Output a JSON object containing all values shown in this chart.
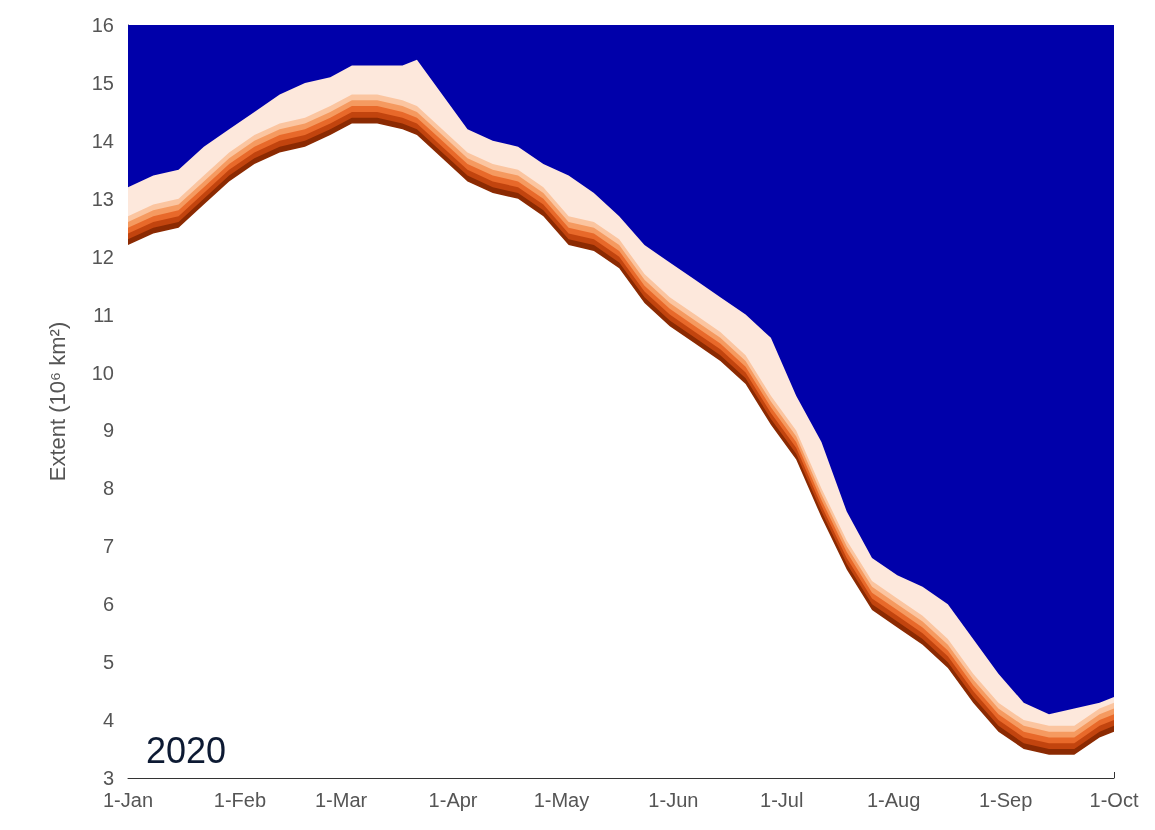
{
  "chart_data": {
    "type": "area",
    "ylabel": "Extent (10⁶ km²)",
    "annotations": [
      "2020"
    ],
    "x": [
      "--01-01",
      "--01-08",
      "--01-15",
      "--01-22",
      "--01-29",
      "--02-05",
      "--02-12",
      "--02-19",
      "--02-26",
      "--03-04",
      "--03-11",
      "--03-18",
      "--03-22",
      "--03-29",
      "--04-05",
      "--04-12",
      "--04-19",
      "--04-26",
      "--05-03",
      "--05-10",
      "--05-17",
      "--05-24",
      "--05-31",
      "--06-07",
      "--06-14",
      "--06-21",
      "--06-28",
      "--07-05",
      "--07-12",
      "--07-19",
      "--07-26",
      "--08-02",
      "--08-09",
      "--08-16",
      "--08-23",
      "--08-30",
      "--09-06",
      "--09-13",
      "--09-20",
      "--09-27",
      "--10-01"
    ],
    "xlim": [
      "--01-01",
      "--10-01"
    ],
    "xticks": [
      {
        "value": "--01-01",
        "label": "1-Jan"
      },
      {
        "value": "--02-01",
        "label": "1-Feb"
      },
      {
        "value": "--03-01",
        "label": "1-Mar"
      },
      {
        "value": "--04-01",
        "label": "1-Apr"
      },
      {
        "value": "--05-01",
        "label": "1-May"
      },
      {
        "value": "--06-01",
        "label": "1-Jun"
      },
      {
        "value": "--07-01",
        "label": "1-Jul"
      },
      {
        "value": "--08-01",
        "label": "1-Aug"
      },
      {
        "value": "--09-01",
        "label": "1-Sep"
      },
      {
        "value": "--10-01",
        "label": "1-Oct"
      }
    ],
    "ylim": [
      3,
      16
    ],
    "yticks": [
      3,
      4,
      5,
      6,
      7,
      8,
      9,
      10,
      11,
      12,
      13,
      14,
      15,
      16
    ],
    "grid": false,
    "series": [
      {
        "color": "#ffffff",
        "values": [
          12.2,
          12.4,
          12.5,
          12.9,
          13.3,
          13.6,
          13.8,
          13.9,
          14.1,
          14.3,
          14.3,
          14.2,
          14.1,
          13.7,
          13.3,
          13.1,
          13.0,
          12.7,
          12.2,
          12.1,
          11.8,
          11.2,
          10.8,
          10.5,
          10.2,
          9.8,
          9.1,
          8.5,
          7.5,
          6.6,
          5.9,
          5.6,
          5.3,
          4.9,
          4.3,
          3.8,
          3.5,
          3.4,
          3.4,
          3.7,
          3.8
        ]
      },
      {
        "color": "#8b2a02",
        "values": [
          12.3,
          12.5,
          12.6,
          13.0,
          13.4,
          13.7,
          13.9,
          14.0,
          14.2,
          14.4,
          14.4,
          14.3,
          14.2,
          13.8,
          13.4,
          13.2,
          13.1,
          12.8,
          12.3,
          12.2,
          11.9,
          11.3,
          10.9,
          10.6,
          10.3,
          9.9,
          9.2,
          8.6,
          7.6,
          6.7,
          6.0,
          5.7,
          5.4,
          5.0,
          4.4,
          3.9,
          3.6,
          3.5,
          3.5,
          3.8,
          3.9
        ]
      },
      {
        "color": "#c2440e",
        "values": [
          12.4,
          12.6,
          12.7,
          13.1,
          13.5,
          13.8,
          14.0,
          14.1,
          14.3,
          14.5,
          14.5,
          14.4,
          14.3,
          13.9,
          13.5,
          13.3,
          13.2,
          12.9,
          12.4,
          12.3,
          12.0,
          11.4,
          11.0,
          10.7,
          10.4,
          10.0,
          9.3,
          8.7,
          7.7,
          6.8,
          6.1,
          5.8,
          5.5,
          5.1,
          4.5,
          4.0,
          3.7,
          3.6,
          3.6,
          3.9,
          4.0
        ]
      },
      {
        "color": "#e8692a",
        "values": [
          12.5,
          12.7,
          12.8,
          13.2,
          13.6,
          13.9,
          14.1,
          14.2,
          14.4,
          14.6,
          14.6,
          14.5,
          14.4,
          14.0,
          13.6,
          13.4,
          13.3,
          13.0,
          12.5,
          12.4,
          12.1,
          11.5,
          11.1,
          10.8,
          10.5,
          10.1,
          9.4,
          8.8,
          7.8,
          6.9,
          6.2,
          5.9,
          5.6,
          5.2,
          4.6,
          4.1,
          3.8,
          3.7,
          3.7,
          4.0,
          4.1
        ]
      },
      {
        "color": "#f59a60",
        "values": [
          12.6,
          12.8,
          12.9,
          13.3,
          13.7,
          14.0,
          14.2,
          14.3,
          14.5,
          14.7,
          14.7,
          14.6,
          14.5,
          14.1,
          13.7,
          13.5,
          13.4,
          13.1,
          12.6,
          12.5,
          12.2,
          11.6,
          11.2,
          10.9,
          10.6,
          10.2,
          9.5,
          8.9,
          7.9,
          7.0,
          6.3,
          6.0,
          5.7,
          5.3,
          4.7,
          4.2,
          3.9,
          3.8,
          3.8,
          4.1,
          4.2
        ]
      },
      {
        "color": "#fbc5a0",
        "values": [
          12.7,
          12.9,
          13.0,
          13.4,
          13.8,
          14.1,
          14.3,
          14.4,
          14.6,
          14.8,
          14.8,
          14.7,
          14.6,
          14.2,
          13.8,
          13.6,
          13.5,
          13.2,
          12.7,
          12.6,
          12.3,
          11.7,
          11.3,
          11.0,
          10.7,
          10.3,
          9.6,
          9.0,
          8.0,
          7.1,
          6.4,
          6.1,
          5.8,
          5.4,
          4.8,
          4.3,
          4.0,
          3.9,
          3.9,
          4.2,
          4.3
        ]
      },
      {
        "color": "#fde8dc",
        "values": [
          13.2,
          13.4,
          13.5,
          13.9,
          14.2,
          14.5,
          14.8,
          15.0,
          15.1,
          15.3,
          15.3,
          15.3,
          15.4,
          14.8,
          14.2,
          14.0,
          13.9,
          13.6,
          13.4,
          13.1,
          12.7,
          12.2,
          11.9,
          11.6,
          11.3,
          11.0,
          10.6,
          9.6,
          8.8,
          7.6,
          6.8,
          6.5,
          6.3,
          6.0,
          5.4,
          4.8,
          4.3,
          4.1,
          4.2,
          4.3,
          4.4
        ]
      },
      {
        "color": "#0000aa",
        "values": [
          16,
          16,
          16,
          16,
          16,
          16,
          16,
          16,
          16,
          16,
          16,
          16,
          16,
          16,
          16,
          16,
          16,
          16,
          16,
          16,
          16,
          16,
          16,
          16,
          16,
          16,
          16,
          16,
          16,
          16,
          16,
          16,
          16,
          16,
          16,
          16,
          16,
          16,
          16,
          16,
          16
        ]
      }
    ]
  }
}
